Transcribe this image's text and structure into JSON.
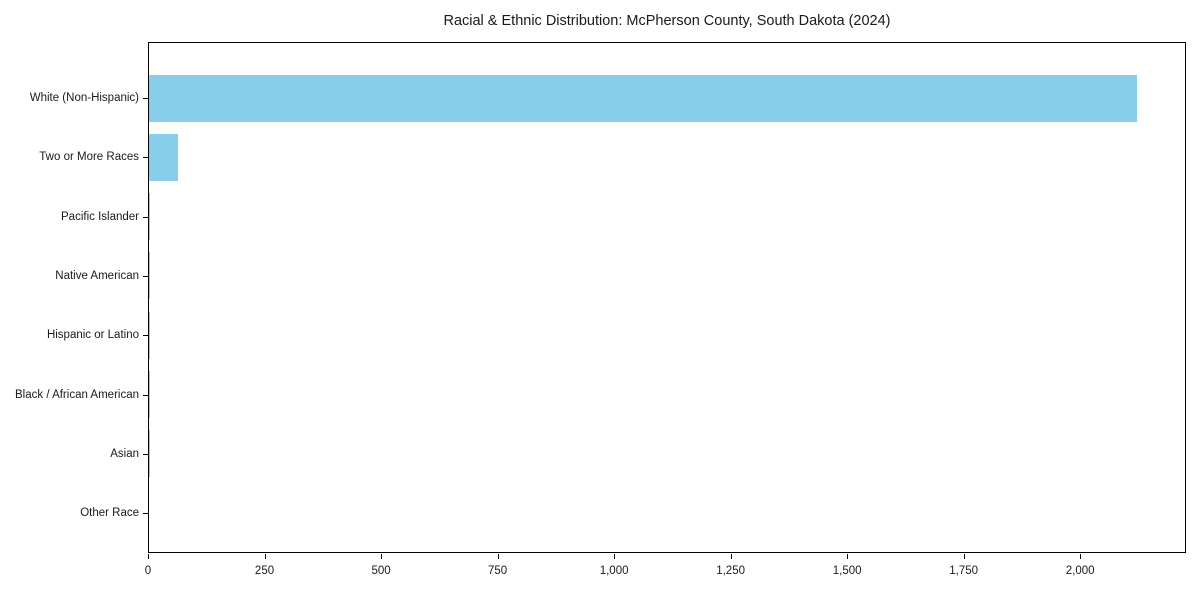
{
  "colors": {
    "bar": "#87ceeb",
    "axes": "#000000",
    "background": "#ffffff",
    "text": "#1a1a1a"
  },
  "chart_data": {
    "type": "bar",
    "orientation": "horizontal",
    "title": "Racial & Ethnic Distribution: McPherson County, South Dakota (2024)",
    "categories": [
      "White (Non-Hispanic)",
      "Two or More Races",
      "Pacific Islander",
      "Native American",
      "Hispanic or Latino",
      "Black / African American",
      "Asian",
      "Other Race"
    ],
    "values": [
      2120,
      62,
      3,
      3,
      2,
      1,
      1,
      0
    ],
    "xlabel": "",
    "ylabel": "",
    "xlim": [
      0,
      2227
    ],
    "xticks": [
      0,
      250,
      500,
      750,
      1000,
      1250,
      1500,
      1750,
      2000
    ],
    "xtick_labels": [
      "0",
      "250",
      "500",
      "750",
      "1,000",
      "1,250",
      "1,500",
      "1,750",
      "2,000"
    ],
    "grid": false,
    "legend": null,
    "bar_color": "#87ceeb"
  }
}
